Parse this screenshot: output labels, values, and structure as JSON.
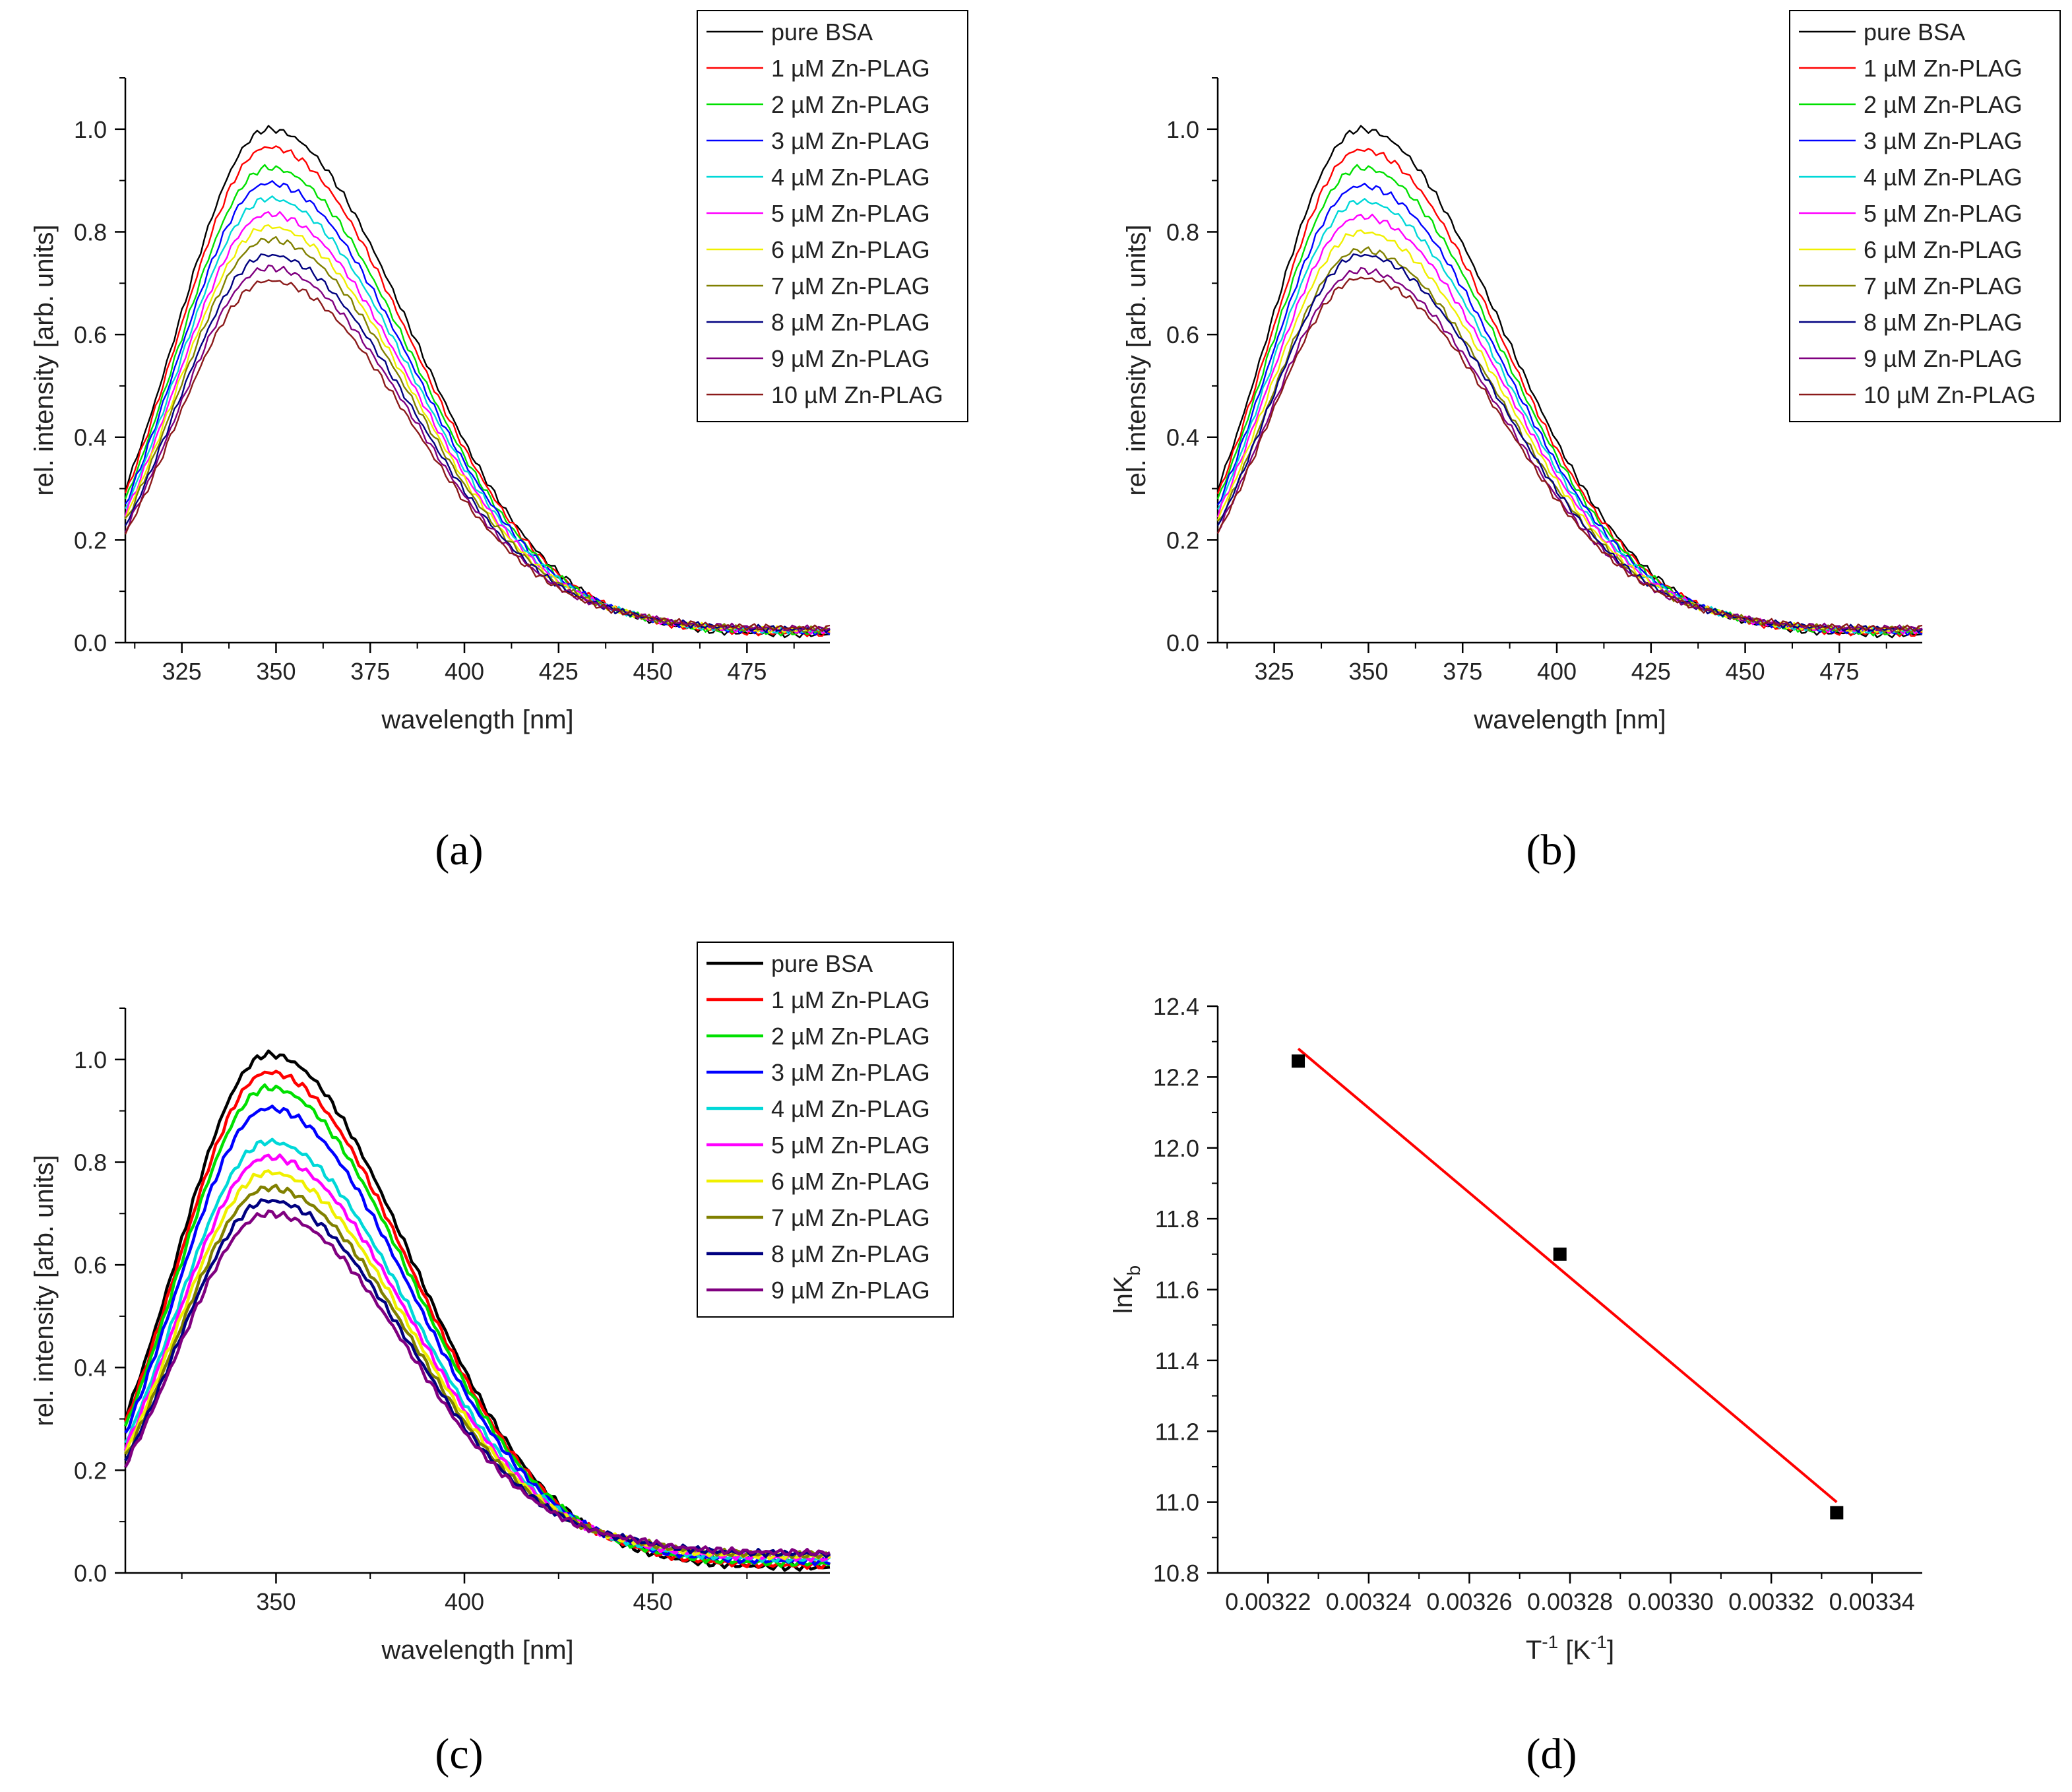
{
  "figure": {
    "panel_labels": [
      "(a)",
      "(b)",
      "(c)",
      "(d)"
    ]
  },
  "chart_data": [
    {
      "panel": "a",
      "type": "line",
      "xlabel": "wavelength [nm]",
      "ylabel": "rel. intensity [arb. units]",
      "xlim": [
        310,
        497
      ],
      "ylim": [
        0,
        1.1
      ],
      "xticks": [
        325,
        350,
        375,
        400,
        425,
        450,
        475
      ],
      "yticks": [
        0.0,
        0.2,
        0.4,
        0.6,
        0.8,
        1.0
      ],
      "grid": false,
      "legend": "top-right",
      "line_style": "thin",
      "series": [
        {
          "name": "pure BSA",
          "color": "#000000",
          "peak": 1.0,
          "tail": 0.015
        },
        {
          "name": "1 µM Zn-PLAG",
          "color": "#ff0000",
          "peak": 0.965,
          "tail": 0.017
        },
        {
          "name": "2 µM Zn-PLAG",
          "color": "#00e000",
          "peak": 0.925,
          "tail": 0.019
        },
        {
          "name": "3 µM Zn-PLAG",
          "color": "#0000ff",
          "peak": 0.895,
          "tail": 0.021
        },
        {
          "name": "4 µM Zn-PLAG",
          "color": "#00d8d8",
          "peak": 0.865,
          "tail": 0.022
        },
        {
          "name": "5 µM Zn-PLAG",
          "color": "#ff00ff",
          "peak": 0.835,
          "tail": 0.023
        },
        {
          "name": "6 µM Zn-PLAG",
          "color": "#f0f000",
          "peak": 0.81,
          "tail": 0.024
        },
        {
          "name": "7 µM Zn-PLAG",
          "color": "#808000",
          "peak": 0.785,
          "tail": 0.025
        },
        {
          "name": "8 µM Zn-PLAG",
          "color": "#000080",
          "peak": 0.755,
          "tail": 0.026
        },
        {
          "name": "9 µM Zn-PLAG",
          "color": "#800080",
          "peak": 0.73,
          "tail": 0.027
        },
        {
          "name": "10 µM Zn-PLAG",
          "color": "#8b1a1a",
          "peak": 0.705,
          "tail": 0.028
        }
      ]
    },
    {
      "panel": "b",
      "type": "line",
      "xlabel": "wavelength [nm]",
      "ylabel": "rel. intensity [arb. units]",
      "xlim": [
        310,
        497
      ],
      "ylim": [
        0,
        1.1
      ],
      "xticks": [
        325,
        350,
        375,
        400,
        425,
        450,
        475
      ],
      "yticks": [
        0.0,
        0.2,
        0.4,
        0.6,
        0.8,
        1.0
      ],
      "grid": false,
      "legend": "top-right",
      "line_style": "thin",
      "series": [
        {
          "name": "pure BSA",
          "color": "#000000",
          "peak": 1.0,
          "tail": 0.015
        },
        {
          "name": "1 µM Zn-PLAG",
          "color": "#ff0000",
          "peak": 0.96,
          "tail": 0.017
        },
        {
          "name": "2 µM Zn-PLAG",
          "color": "#00e000",
          "peak": 0.925,
          "tail": 0.019
        },
        {
          "name": "3 µM Zn-PLAG",
          "color": "#0000ff",
          "peak": 0.89,
          "tail": 0.021
        },
        {
          "name": "4 µM Zn-PLAG",
          "color": "#00d8d8",
          "peak": 0.86,
          "tail": 0.022
        },
        {
          "name": "5 µM Zn-PLAG",
          "color": "#ff00ff",
          "peak": 0.83,
          "tail": 0.023
        },
        {
          "name": "6 µM Zn-PLAG",
          "color": "#f0f000",
          "peak": 0.8,
          "tail": 0.024
        },
        {
          "name": "7 µM Zn-PLAG",
          "color": "#808000",
          "peak": 0.765,
          "tail": 0.025
        },
        {
          "name": "8 µM Zn-PLAG",
          "color": "#000080",
          "peak": 0.755,
          "tail": 0.026
        },
        {
          "name": "9 µM Zn-PLAG",
          "color": "#800080",
          "peak": 0.725,
          "tail": 0.027
        },
        {
          "name": "10 µM Zn-PLAG",
          "color": "#8b1a1a",
          "peak": 0.71,
          "tail": 0.028
        }
      ]
    },
    {
      "panel": "c",
      "type": "line",
      "xlabel": "wavelength [nm]",
      "ylabel": "rel. intensity [arb. units]",
      "xlim": [
        310,
        497
      ],
      "ylim": [
        0,
        1.1
      ],
      "xticks": [
        350,
        400,
        450
      ],
      "yticks": [
        0.0,
        0.2,
        0.4,
        0.6,
        0.8,
        1.0
      ],
      "grid": false,
      "legend": "top-right",
      "line_style": "thick",
      "series": [
        {
          "name": "pure BSA",
          "color": "#000000",
          "peak": 1.01,
          "tail": 0.01
        },
        {
          "name": "1 µM Zn-PLAG",
          "color": "#ff0000",
          "peak": 0.975,
          "tail": 0.014
        },
        {
          "name": "2 µM Zn-PLAG",
          "color": "#00e000",
          "peak": 0.945,
          "tail": 0.018
        },
        {
          "name": "3 µM Zn-PLAG",
          "color": "#0000ff",
          "peak": 0.905,
          "tail": 0.022
        },
        {
          "name": "4 µM Zn-PLAG",
          "color": "#00d8d8",
          "peak": 0.84,
          "tail": 0.026
        },
        {
          "name": "5 µM Zn-PLAG",
          "color": "#ff00ff",
          "peak": 0.81,
          "tail": 0.029
        },
        {
          "name": "6 µM Zn-PLAG",
          "color": "#f0f000",
          "peak": 0.78,
          "tail": 0.032
        },
        {
          "name": "7 µM Zn-PLAG",
          "color": "#808000",
          "peak": 0.75,
          "tail": 0.035
        },
        {
          "name": "8 µM Zn-PLAG",
          "color": "#000080",
          "peak": 0.725,
          "tail": 0.037
        },
        {
          "name": "9 µM Zn-PLAG",
          "color": "#800080",
          "peak": 0.7,
          "tail": 0.039
        }
      ]
    },
    {
      "panel": "d",
      "type": "scatter",
      "xlabel": "T-1 [K-1]",
      "xlabel_parts": {
        "base": "T",
        "sup": "-1",
        "mid": " [K",
        "sup2": "-1",
        "end": "]"
      },
      "ylabel": "lnKb",
      "ylabel_parts": {
        "base": "lnK",
        "sub": "b"
      },
      "xlim": [
        0.00321,
        0.00335
      ],
      "ylim": [
        10.8,
        12.4
      ],
      "xticks": [
        "0.00322",
        "0.00324",
        "0.00326",
        "0.00328",
        "0.00330",
        "0.00332",
        "0.00334"
      ],
      "yticks": [
        "10.8",
        "11.0",
        "11.2",
        "11.4",
        "11.6",
        "11.8",
        "12.0",
        "12.2",
        "12.4"
      ],
      "grid": false,
      "points": [
        {
          "x": 0.003226,
          "y": 12.245
        },
        {
          "x": 0.003278,
          "y": 11.7
        },
        {
          "x": 0.003333,
          "y": 10.97
        }
      ],
      "fit_line": {
        "x": [
          0.003226,
          0.003333
        ],
        "y": [
          12.28,
          11.0
        ],
        "color": "#ff0000"
      },
      "marker_color": "#000000"
    }
  ]
}
